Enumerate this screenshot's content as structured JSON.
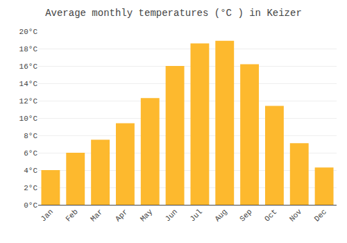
{
  "chart_data": {
    "type": "bar",
    "title": "Average monthly temperatures (°C ) in Keizer",
    "categories": [
      "Jan",
      "Feb",
      "Mar",
      "Apr",
      "May",
      "Jun",
      "Jul",
      "Aug",
      "Sep",
      "Oct",
      "Nov",
      "Dec"
    ],
    "values": [
      4.0,
      6.0,
      7.5,
      9.4,
      12.3,
      16.0,
      18.6,
      18.9,
      16.2,
      11.4,
      7.1,
      4.3
    ],
    "color": "#FDB92E",
    "ylim": [
      0,
      20
    ],
    "yticks": [
      {
        "value": 0,
        "label": "0°C"
      },
      {
        "value": 2,
        "label": "2°C"
      },
      {
        "value": 4,
        "label": "4°C"
      },
      {
        "value": 6,
        "label": "6°C"
      },
      {
        "value": 8,
        "label": "8°C"
      },
      {
        "value": 10,
        "label": "10°C"
      },
      {
        "value": 12,
        "label": "12°C"
      },
      {
        "value": 14,
        "label": "14°C"
      },
      {
        "value": 16,
        "label": "16°C"
      },
      {
        "value": 18,
        "label": "18°C"
      },
      {
        "value": 20,
        "label": "20°C"
      }
    ],
    "grid": true
  }
}
